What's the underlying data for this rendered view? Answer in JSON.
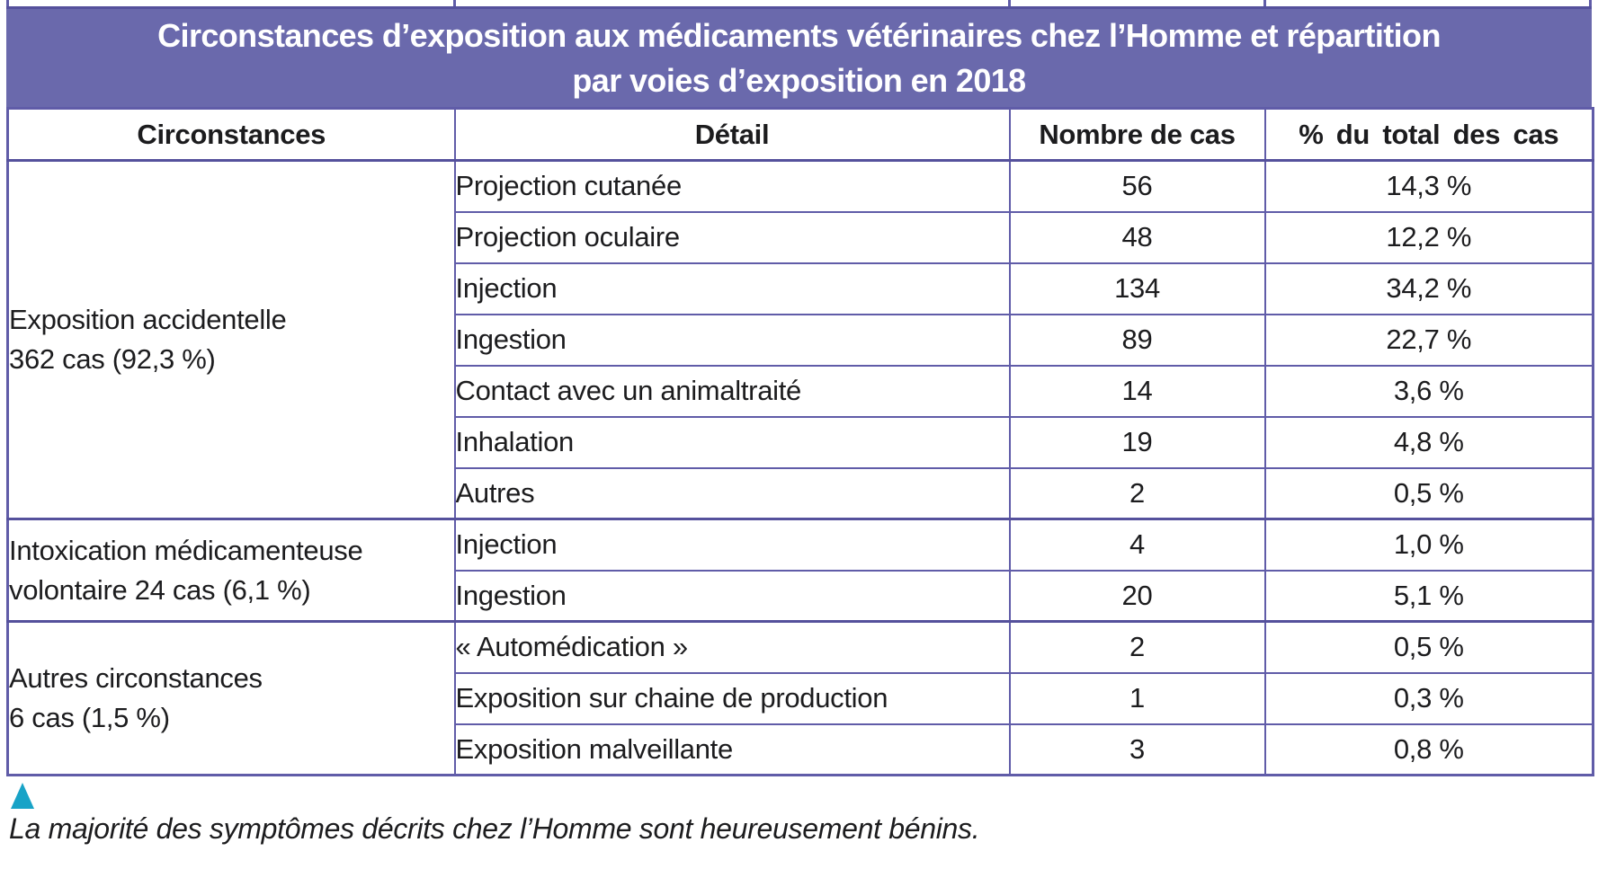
{
  "title": {
    "line1": "Circonstances d’exposition aux médicaments vétérinaires chez l’Homme et répartition",
    "line2": "par voies d’exposition en 2018"
  },
  "table": {
    "columns": [
      "Circonstances",
      "Détail",
      "Nombre de cas",
      "% du total des cas"
    ],
    "groups": [
      {
        "label_line1": "Exposition accidentelle",
        "label_line2": "362 cas (92,3 %)",
        "rows": [
          {
            "detail": "Projection cutanée",
            "cases": "56",
            "percent": "14,3 %"
          },
          {
            "detail": "Projection oculaire",
            "cases": "48",
            "percent": "12,2 %"
          },
          {
            "detail": "Injection",
            "cases": "134",
            "percent": "34,2 %"
          },
          {
            "detail": "Ingestion",
            "cases": "89",
            "percent": "22,7 %"
          },
          {
            "detail": "Contact avec un animaltraité",
            "cases": "14",
            "percent": "3,6 %"
          },
          {
            "detail": "Inhalation",
            "cases": "19",
            "percent": "4,8 %"
          },
          {
            "detail": "Autres",
            "cases": "2",
            "percent": "0,5 %"
          }
        ]
      },
      {
        "label_line1": "Intoxication médicamenteuse",
        "label_line2": "volontaire 24 cas (6,1 %)",
        "rows": [
          {
            "detail": "Injection",
            "cases": "4",
            "percent": "1,0 %"
          },
          {
            "detail": "Ingestion",
            "cases": "20",
            "percent": "5,1 %"
          }
        ]
      },
      {
        "label_line1": "Autres circonstances",
        "label_line2": "6 cas (1,5 %)",
        "rows": [
          {
            "detail": "« Automédication »",
            "cases": "2",
            "percent": "0,5 %"
          },
          {
            "detail": "Exposition sur chaine de production",
            "cases": "1",
            "percent": "0,3 %"
          },
          {
            "detail": "Exposition malveillante",
            "cases": "3",
            "percent": "0,8 %"
          }
        ]
      }
    ]
  },
  "caption": {
    "text": "La majorité des symptômes décrits chez l’Homme sont heureusement bénins."
  },
  "colors": {
    "title_background": "#6a69ac",
    "table_border": "#605ca8",
    "caption_marker": "#18a3c7",
    "text": "#1c1c1e"
  }
}
